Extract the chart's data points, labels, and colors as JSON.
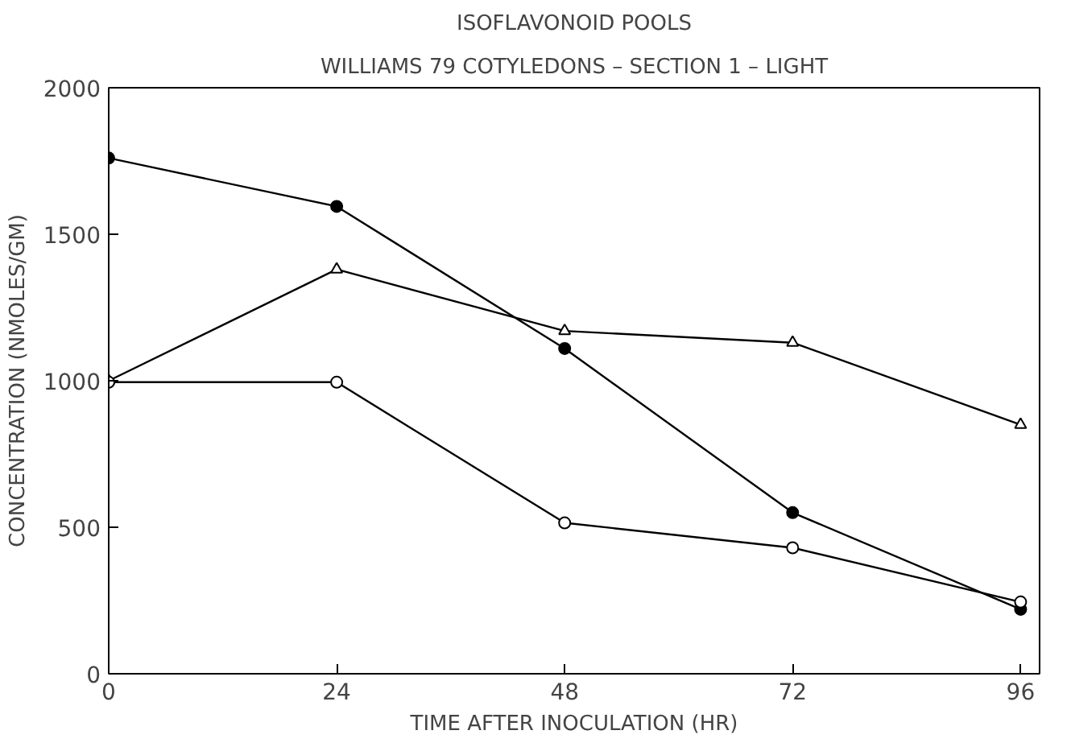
{
  "chart_data": {
    "type": "line",
    "title": "ISOFLAVONOID POOLS",
    "subtitle": "WILLIAMS 79 COTYLEDONS – SECTION 1 – LIGHT",
    "xlabel": "TIME AFTER INOCULATION (HR)",
    "ylabel": "CONCENTRATION (NMOLES/GM)",
    "x": [
      0,
      24,
      48,
      72,
      96
    ],
    "series": [
      {
        "color": "#000000",
        "marker": "filled_circle",
        "values": [
          1760,
          1595,
          1110,
          550,
          220
        ]
      },
      {
        "color": "#000000",
        "marker": "triangle",
        "values": [
          1000,
          1380,
          1170,
          1130,
          850
        ]
      },
      {
        "color": "#000000",
        "marker": "circle",
        "values": [
          995,
          995,
          515,
          430,
          245
        ]
      }
    ],
    "xlim": [
      0,
      98
    ],
    "ylim": [
      0,
      2000
    ],
    "xticks": [
      0,
      24,
      48,
      72,
      96
    ],
    "yticks": [
      0,
      500,
      1000,
      1500,
      2000
    ],
    "grid": false
  }
}
